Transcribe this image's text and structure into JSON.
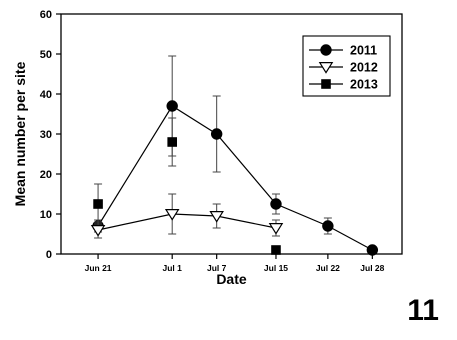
{
  "figure_number": "11",
  "chart_data": {
    "type": "line",
    "title": "",
    "xlabel": "Date",
    "ylabel": "Mean number per site",
    "ylim": [
      0,
      60
    ],
    "yticks": [
      0,
      10,
      20,
      30,
      40,
      50,
      60
    ],
    "x_ticks": [
      {
        "label": "Jun 21",
        "day": 21
      },
      {
        "label": "Jul 1",
        "day": 31
      },
      {
        "label": "Jul 7",
        "day": 37
      },
      {
        "label": "Jul 15",
        "day": 45
      },
      {
        "label": "Jul 22",
        "day": 52
      },
      {
        "label": "Jul 28",
        "day": 58
      }
    ],
    "xlim_days": [
      16,
      62
    ],
    "grid": false,
    "legend_position": "top-right",
    "series": [
      {
        "name": "2011",
        "marker": "filled-circle",
        "connected": true,
        "points": [
          {
            "date": "Jun 21",
            "y": 7,
            "err": 1.5
          },
          {
            "date": "Jul 1",
            "y": 37,
            "err": 12.5
          },
          {
            "date": "Jul 7",
            "y": 30,
            "err": 9.5
          },
          {
            "date": "Jul 15",
            "y": 12.5,
            "err": 2.5
          },
          {
            "date": "Jul 22",
            "y": 7,
            "err": 2
          },
          {
            "date": "Jul 28",
            "y": 1,
            "err": 0.4
          }
        ]
      },
      {
        "name": "2012",
        "marker": "open-triangle-down",
        "connected": true,
        "points": [
          {
            "date": "Jun 21",
            "y": 6,
            "err": 2
          },
          {
            "date": "Jul 1",
            "y": 10,
            "err": 5
          },
          {
            "date": "Jul 7",
            "y": 9.5,
            "err": 3
          },
          {
            "date": "Jul 15",
            "y": 6.5,
            "err": 2
          }
        ]
      },
      {
        "name": "2013",
        "marker": "filled-square",
        "connected": false,
        "points": [
          {
            "date": "Jun 21",
            "y": 12.5,
            "err": 5
          },
          {
            "date": "Jul 1",
            "y": 28,
            "err": 6
          },
          {
            "date": "Jul 15",
            "y": 1,
            "err": 0
          }
        ]
      }
    ]
  }
}
